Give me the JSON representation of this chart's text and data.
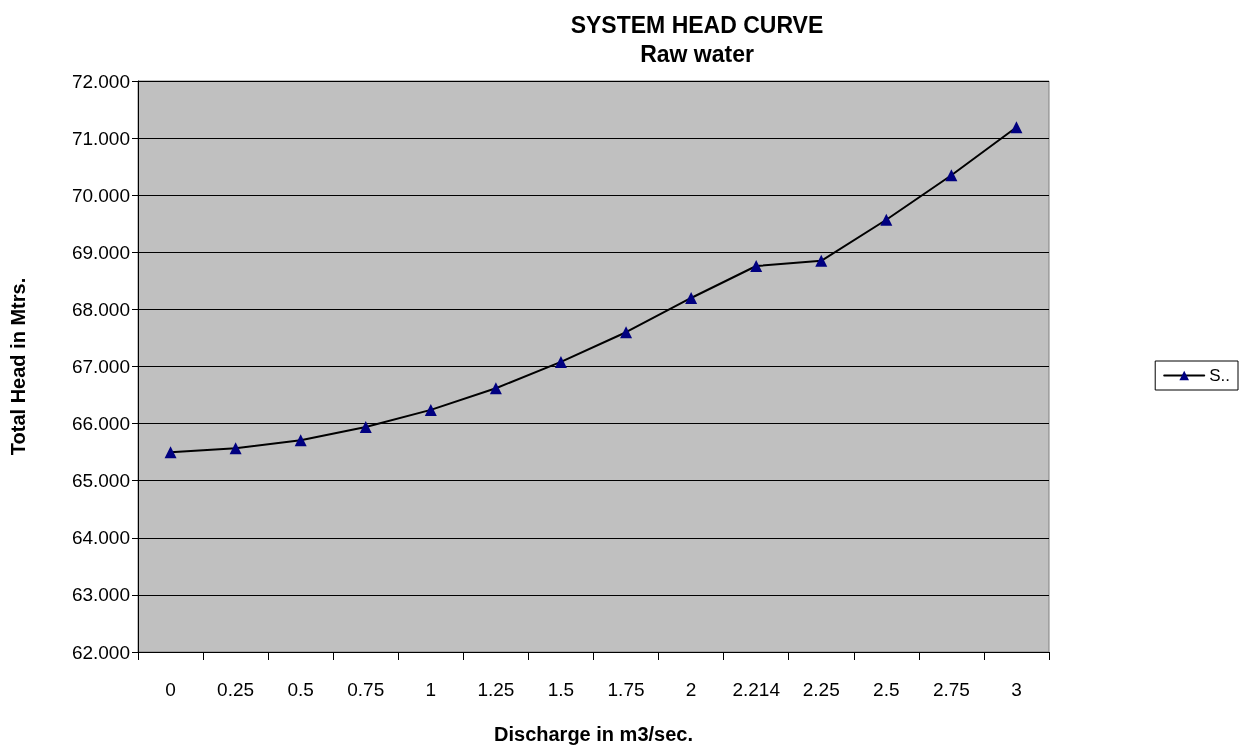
{
  "chart_data": {
    "type": "line",
    "title": "SYSTEM HEAD CURVE",
    "subtitle": "Raw water",
    "xlabel": "Discharge in m3/sec.",
    "ylabel": "Total Head in Mtrs.",
    "categories": [
      "0",
      "0.25",
      "0.5",
      "0.75",
      "1",
      "1.25",
      "1.5",
      "1.75",
      "2",
      "2.214",
      "2.25",
      "2.5",
      "2.75",
      "3"
    ],
    "series": [
      {
        "name": "S..",
        "color": "#000080",
        "values": [
          65.5,
          65.57,
          65.71,
          65.94,
          66.24,
          66.62,
          67.08,
          67.6,
          68.2,
          68.76,
          68.85,
          69.57,
          70.35,
          71.19
        ]
      }
    ],
    "ylim": [
      62,
      72
    ],
    "yticks": [
      {
        "value": 62,
        "label": "62.000"
      },
      {
        "value": 63,
        "label": "63.000"
      },
      {
        "value": 64,
        "label": "64.000"
      },
      {
        "value": 65,
        "label": "65.000"
      },
      {
        "value": 66,
        "label": "66.000"
      },
      {
        "value": 67,
        "label": "67.000"
      },
      {
        "value": 68,
        "label": "68.000"
      },
      {
        "value": 69,
        "label": "69.000"
      },
      {
        "value": 70,
        "label": "70.000"
      },
      {
        "value": 71,
        "label": "71.000"
      },
      {
        "value": 72,
        "label": "72.000"
      }
    ],
    "grid": "y",
    "legend": "right",
    "marker": "triangle",
    "line_style": "solid"
  }
}
